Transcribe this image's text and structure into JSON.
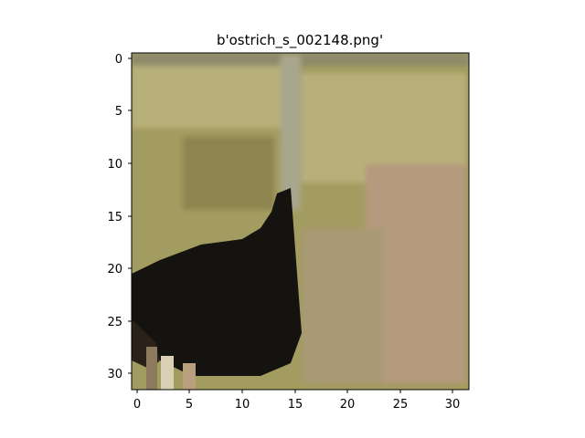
{
  "figure": {
    "title": "b'ostrich_s_002148.png'"
  },
  "image": {
    "subject": "ostrich standing in grassy field",
    "colors": {
      "grass_light": "#b8b07a",
      "grass_mid": "#a39c60",
      "grass_dark": "#8d8450",
      "ground_pinkish": "#b59a7e",
      "neck_gray": "#a8a68c",
      "body_black": "#15130f",
      "leg_light": "#d8cfb4"
    }
  },
  "axes": {
    "x_ticks": [
      "0",
      "5",
      "10",
      "15",
      "20",
      "25",
      "30"
    ],
    "y_ticks": [
      "0",
      "5",
      "10",
      "15",
      "20",
      "25",
      "30"
    ]
  }
}
